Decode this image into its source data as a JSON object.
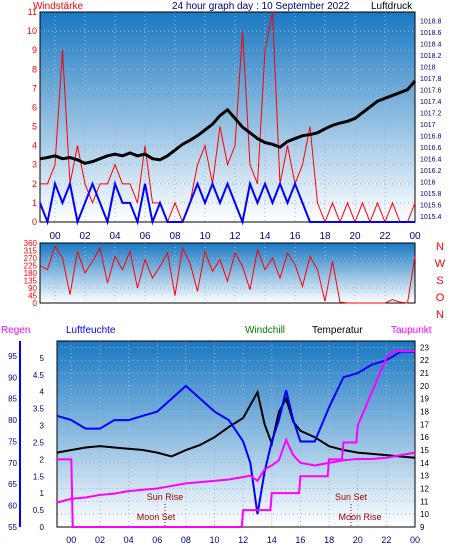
{
  "colors": {
    "red": "#ff0000",
    "blue": "#0000ff",
    "navy": "#000080",
    "green": "#008000",
    "black": "#000000",
    "magenta": "#ff00ff",
    "darkred": "#990000",
    "sky_top": "#1a78c2",
    "sky_bottom": "#ffffff"
  },
  "time_ticks": [
    "00",
    "02",
    "04",
    "06",
    "08",
    "10",
    "12",
    "14",
    "16",
    "18",
    "20",
    "22",
    "00"
  ],
  "chart_data": [
    {
      "type": "line",
      "title": "24 hour graph day : 10 September 2022",
      "legend_left": "Windstärke",
      "legend_right": "Luftdruck",
      "x_range": [
        -1,
        24
      ],
      "left_axis": {
        "label": "Windstärke",
        "range": [
          0,
          11
        ],
        "ticks": [
          "0",
          "1",
          "2",
          "3",
          "4",
          "5",
          "6",
          "7",
          "8",
          "9",
          "10",
          "11"
        ]
      },
      "right_axis": {
        "label": "Luftdruck",
        "range": [
          1015.3,
          1018.95
        ],
        "ticks": [
          "1015.4",
          "1015.6",
          "1015.8",
          "1016",
          "1016.2",
          "1016.4",
          "1016.6",
          "1016.8",
          "1017",
          "1017.2",
          "1017.4",
          "1017.6",
          "1017.8",
          "1018",
          "1018.2",
          "1018.4",
          "1018.6",
          "1018.8"
        ]
      },
      "series": [
        {
          "name": "Luftdruck",
          "axis": "right",
          "x": [
            -1,
            -0.5,
            0,
            0.5,
            1,
            1.5,
            2,
            2.5,
            3,
            3.5,
            4,
            4.5,
            5,
            5.5,
            6,
            6.5,
            7,
            7.5,
            8,
            8.5,
            9,
            9.5,
            10,
            10.5,
            11,
            11.5,
            12,
            12.5,
            13,
            13.5,
            14,
            14.5,
            15,
            15.5,
            16,
            16.5,
            17,
            17.5,
            18,
            18.5,
            19,
            19.5,
            20,
            20.5,
            21,
            21.5,
            22,
            22.5,
            23,
            23.5,
            24
          ],
          "y": [
            1016.4,
            1016.42,
            1016.45,
            1016.4,
            1016.42,
            1016.38,
            1016.32,
            1016.35,
            1016.4,
            1016.45,
            1016.48,
            1016.45,
            1016.5,
            1016.45,
            1016.48,
            1016.4,
            1016.38,
            1016.45,
            1016.55,
            1016.65,
            1016.72,
            1016.8,
            1016.9,
            1017.0,
            1017.15,
            1017.25,
            1017.1,
            1016.95,
            1016.85,
            1016.75,
            1016.68,
            1016.65,
            1016.6,
            1016.7,
            1016.75,
            1016.8,
            1016.82,
            1016.85,
            1016.92,
            1016.98,
            1017.02,
            1017.05,
            1017.1,
            1017.2,
            1017.3,
            1017.4,
            1017.45,
            1017.5,
            1017.55,
            1017.6,
            1017.75
          ]
        },
        {
          "name": "Windstärke",
          "axis": "left",
          "x": [
            -1,
            -0.5,
            0,
            0.5,
            1,
            1.5,
            2,
            2.5,
            3,
            3.5,
            4,
            4.5,
            5,
            5.5,
            6,
            6.5,
            7,
            7.5,
            8,
            8.5,
            9,
            9.5,
            10,
            10.5,
            11,
            11.5,
            12,
            12.5,
            13,
            13.5,
            14,
            14.5,
            15,
            15.5,
            16,
            16.5,
            17,
            17.5,
            18,
            18.5,
            19,
            19.5,
            20,
            20.5,
            21,
            21.5,
            22,
            22.5,
            23,
            23.5,
            24
          ],
          "y": [
            2,
            2,
            3,
            9,
            2,
            4,
            2,
            1,
            2,
            2,
            3,
            2,
            2,
            1,
            4,
            1,
            1,
            0,
            1,
            0,
            1,
            3,
            4,
            2,
            5,
            3,
            4,
            10,
            3,
            2,
            9,
            11,
            2,
            4,
            2,
            3,
            5,
            1,
            0,
            1,
            0,
            1,
            0,
            1,
            0,
            1,
            0,
            1,
            0,
            0,
            1
          ]
        },
        {
          "name": "Windstärke",
          "axis": "left",
          "x": [
            -1,
            -0.5,
            0,
            0.5,
            1,
            1.5,
            2,
            2.5,
            3,
            3.5,
            4,
            4.5,
            5,
            5.5,
            6,
            6.5,
            7,
            7.5,
            8,
            8.5,
            9,
            9.5,
            10,
            10.5,
            11,
            11.5,
            12,
            12.5,
            13,
            13.5,
            14,
            14.5,
            15,
            15.5,
            16,
            16.5,
            17,
            17.5,
            18,
            18.5,
            19,
            19.5,
            20,
            20.5,
            21,
            21.5,
            22,
            22.5,
            23,
            23.5,
            24
          ],
          "y": [
            1,
            0,
            2,
            1,
            2,
            0,
            1,
            2,
            1,
            0,
            2,
            1,
            1,
            0,
            2,
            0,
            1,
            0,
            0,
            0,
            1,
            2,
            1,
            2,
            1,
            2,
            1,
            0,
            2,
            1,
            2,
            1,
            2,
            1,
            2,
            1,
            0,
            0,
            0,
            0,
            0,
            0,
            0,
            0,
            0,
            0,
            0,
            0,
            0,
            0,
            0
          ]
        }
      ]
    },
    {
      "type": "line",
      "title": "",
      "x_range": [
        -1,
        24
      ],
      "left_axis": {
        "range": [
          0,
          360
        ],
        "ticks": [
          "0",
          "45",
          "90",
          "135",
          "180",
          "225",
          "270",
          "315",
          "360"
        ]
      },
      "direction_labels": [
        "N",
        "W",
        "S",
        "O",
        "N"
      ],
      "series": [
        {
          "name": "",
          "x": [
            -1,
            -0.5,
            0,
            0.5,
            1,
            1.5,
            2,
            2.5,
            3,
            3.5,
            4,
            4.5,
            5,
            5.5,
            6,
            6.5,
            7,
            7.5,
            8,
            8.5,
            9,
            9.5,
            10,
            10.5,
            11,
            11.5,
            12,
            12.5,
            13,
            13.5,
            14,
            14.5,
            15,
            15.5,
            16,
            16.5,
            17,
            17.5,
            18,
            18.5,
            19,
            19.5,
            20,
            20.5,
            21,
            21.5,
            22,
            22.5,
            23,
            23.5,
            24
          ],
          "y": [
            225,
            200,
            340,
            270,
            50,
            310,
            180,
            250,
            330,
            120,
            280,
            200,
            310,
            90,
            260,
            150,
            220,
            300,
            45,
            330,
            240,
            70,
            310,
            190,
            260,
            130,
            300,
            220,
            80,
            320,
            200,
            270,
            150,
            300,
            230,
            100,
            280,
            200,
            10,
            250,
            5,
            0,
            0,
            0,
            0,
            0,
            0,
            20,
            5,
            0,
            280
          ]
        }
      ]
    },
    {
      "type": "line",
      "title": "",
      "legend": [
        "Regen",
        "Luftfeuchte",
        "Windchill",
        "Temperatur",
        "Taupunkt"
      ],
      "x_range": [
        -1,
        24
      ],
      "rain_axis": {
        "range": [
          0,
          5.5
        ],
        "ticks": [
          "0",
          "0.5",
          "1",
          "1.5",
          "2",
          "2.5",
          "3",
          "3.5",
          "4",
          "4.5",
          "5"
        ]
      },
      "humidity_axis": {
        "range": [
          55,
          98.5
        ],
        "ticks": [
          "55",
          "60",
          "65",
          "70",
          "75",
          "80",
          "85",
          "90",
          "95"
        ]
      },
      "temp_axis": {
        "range": [
          9,
          23.5
        ],
        "ticks": [
          "9",
          "10",
          "11",
          "12",
          "13",
          "14",
          "15",
          "16",
          "17",
          "18",
          "19",
          "20",
          "21",
          "22",
          "23"
        ]
      },
      "annotations": [
        "Sun Rise",
        "Sun Set",
        "Moon Set",
        "Moon Rise"
      ],
      "series": [
        {
          "name": "Temperatur",
          "axis": "temp",
          "x": [
            -1,
            0,
            1,
            2,
            3,
            4,
            5,
            6,
            7,
            8,
            9,
            10,
            11,
            12,
            12.5,
            13,
            13.5,
            14,
            14.5,
            15,
            15.5,
            16,
            17,
            18,
            19,
            20,
            21,
            22,
            23,
            24
          ],
          "y": [
            14.8,
            15.0,
            15.2,
            15.3,
            15.2,
            15.1,
            15.0,
            14.8,
            14.5,
            15.0,
            15.4,
            16.0,
            16.8,
            17.5,
            18.5,
            19.5,
            17.0,
            15.5,
            18.0,
            19.0,
            17.2,
            16.5,
            16.0,
            15.3,
            15.0,
            14.8,
            14.7,
            14.6,
            14.5,
            14.4
          ]
        },
        {
          "name": "Luftfeuchte",
          "axis": "humidity",
          "x": [
            -1,
            0,
            1,
            2,
            3,
            4,
            5,
            6,
            7,
            8,
            9,
            10,
            11,
            12,
            12.5,
            13,
            13.5,
            14,
            14.5,
            15,
            15.5,
            16,
            17,
            18,
            19,
            20,
            21,
            22,
            23,
            24
          ],
          "y": [
            81,
            80,
            78,
            78,
            80,
            80,
            81,
            82,
            85,
            88,
            85,
            82,
            80,
            75,
            70,
            58,
            68,
            75,
            80,
            87,
            80,
            75,
            75,
            83,
            90,
            91,
            93,
            94,
            96,
            96
          ]
        },
        {
          "name": "Taupunkt",
          "axis": "temp",
          "x": [
            -1,
            0,
            1,
            2,
            3,
            4,
            5,
            6,
            7,
            8,
            9,
            10,
            11,
            12,
            12.5,
            13,
            13.5,
            14,
            14.5,
            15,
            15.5,
            16,
            17,
            18,
            19,
            20,
            21,
            22,
            23,
            24
          ],
          "y": [
            10.9,
            11.2,
            11.3,
            11.5,
            11.6,
            11.8,
            11.9,
            12.0,
            12.2,
            12.4,
            12.5,
            12.6,
            12.7,
            12.9,
            13.0,
            12.6,
            13.5,
            13.8,
            14.2,
            15.8,
            14.6,
            14.0,
            13.8,
            14.0,
            14.2,
            14.3,
            14.3,
            14.4,
            14.6,
            14.8
          ]
        },
        {
          "name": "Regen",
          "axis": "rain",
          "x": [
            -1,
            0,
            0.1,
            11.9,
            12,
            13.9,
            14,
            15.9,
            16,
            17.9,
            18,
            18.9,
            19,
            19.9,
            20,
            20.5,
            21,
            21.5,
            22,
            22.5,
            23,
            24
          ],
          "y": [
            2,
            2,
            0,
            0,
            0.5,
            0.5,
            1,
            1,
            1.5,
            1.5,
            2,
            2,
            2.5,
            2.5,
            3,
            3.5,
            4,
            4.5,
            5,
            5.2,
            5.2,
            5.2
          ]
        }
      ]
    }
  ]
}
